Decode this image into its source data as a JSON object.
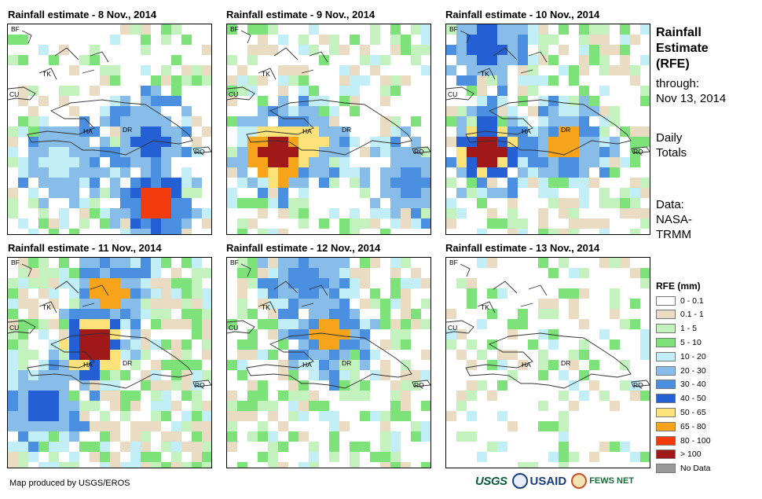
{
  "panels": [
    {
      "title": "Rainfall estimate - 8 Nov., 2014",
      "seed": 8,
      "density": 0.38,
      "hotspots": [
        [
          0.72,
          0.85,
          10
        ],
        [
          0.7,
          0.55,
          7
        ],
        [
          0.25,
          0.65,
          4
        ]
      ]
    },
    {
      "title": "Rainfall estimate - 9 Nov., 2014",
      "seed": 9,
      "density": 0.45,
      "hotspots": [
        [
          0.25,
          0.62,
          12
        ],
        [
          0.4,
          0.55,
          8
        ],
        [
          0.9,
          0.75,
          6
        ]
      ]
    },
    {
      "title": "Rainfall estimate - 10 Nov., 2014",
      "seed": 10,
      "density": 0.55,
      "hotspots": [
        [
          0.2,
          0.6,
          11
        ],
        [
          0.6,
          0.58,
          9
        ],
        [
          0.2,
          0.1,
          7
        ]
      ]
    },
    {
      "title": "Rainfall estimate - 11 Nov., 2014",
      "seed": 11,
      "density": 0.75,
      "hotspots": [
        [
          0.42,
          0.42,
          11
        ],
        [
          0.5,
          0.15,
          9
        ],
        [
          0.18,
          0.7,
          7
        ]
      ]
    },
    {
      "title": "Rainfall estimate - 12 Nov., 2014",
      "seed": 12,
      "density": 0.55,
      "hotspots": [
        [
          0.5,
          0.38,
          9
        ],
        [
          0.4,
          0.1,
          6
        ]
      ]
    },
    {
      "title": "Rainfall estimate - 13 Nov., 2014",
      "seed": 13,
      "density": 0.28,
      "hotspots": []
    }
  ],
  "map_labels": {
    "bf": "BF",
    "tk": "TK",
    "cu": "CU",
    "ha": "HA",
    "dr": "DR",
    "rq": "RQ"
  },
  "sidebar": {
    "title": "Rainfall Estimate (RFE)",
    "title_lines": [
      "Rainfall",
      "Estimate",
      "(RFE)"
    ],
    "through_lines": [
      "through:",
      "Nov 13, 2014"
    ],
    "daily_lines": [
      "Daily",
      "Totals"
    ],
    "data_lines": [
      "Data:",
      "NASA-",
      "TRMM"
    ]
  },
  "legend": {
    "title": "RFE (mm)",
    "items": [
      {
        "label": "0 - 0.1",
        "color": "#ffffff"
      },
      {
        "label": "0.1 - 1",
        "color": "#e9dcc3"
      },
      {
        "label": "1 - 5",
        "color": "#c3f2bf"
      },
      {
        "label": "5 - 10",
        "color": "#7ee27a"
      },
      {
        "label": "10 - 20",
        "color": "#c2eef7"
      },
      {
        "label": "20 - 30",
        "color": "#88bde9"
      },
      {
        "label": "30 - 40",
        "color": "#4b8fe0"
      },
      {
        "label": "40 - 50",
        "color": "#2460d4"
      },
      {
        "label": "50 - 65",
        "color": "#fde27a"
      },
      {
        "label": "65 - 80",
        "color": "#f7a41b"
      },
      {
        "label": "80 - 100",
        "color": "#f23b0c"
      },
      {
        "label": "> 100",
        "color": "#a01818"
      },
      {
        "label": "No Data",
        "color": "#999999"
      }
    ]
  },
  "footer": {
    "credit": "Map produced by USGS/EROS",
    "logos": {
      "usgs": "USGS",
      "usaid": "USAID",
      "fews": "FEWS NET"
    }
  }
}
